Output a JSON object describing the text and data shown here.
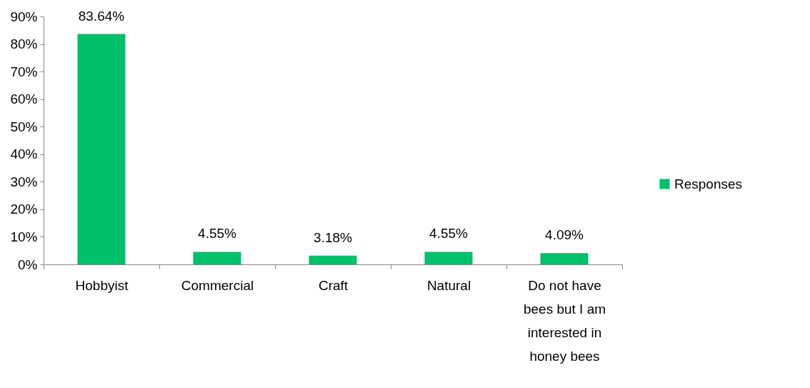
{
  "chart_data": {
    "type": "bar",
    "categories": [
      "Hobbyist",
      "Commercial",
      "Craft",
      "Natural",
      "Do not have bees but I am interested in honey bees"
    ],
    "series": [
      {
        "name": "Responses",
        "color": "#00c06a",
        "values": [
          83.64,
          4.55,
          3.18,
          4.55,
          4.09
        ]
      }
    ],
    "value_labels": [
      "83.64%",
      "4.55%",
      "3.18%",
      "4.55%",
      "4.09%"
    ],
    "ylim": [
      0,
      90
    ],
    "yticks": [
      {
        "value": 0,
        "label": "0%"
      },
      {
        "value": 10,
        "label": "10%"
      },
      {
        "value": 20,
        "label": "20%"
      },
      {
        "value": 30,
        "label": "30%"
      },
      {
        "value": 40,
        "label": "40%"
      },
      {
        "value": 50,
        "label": "50%"
      },
      {
        "value": 60,
        "label": "60%"
      },
      {
        "value": 70,
        "label": "70%"
      },
      {
        "value": 80,
        "label": "80%"
      },
      {
        "value": 90,
        "label": "90%"
      }
    ],
    "grid": false,
    "legend": "right"
  }
}
